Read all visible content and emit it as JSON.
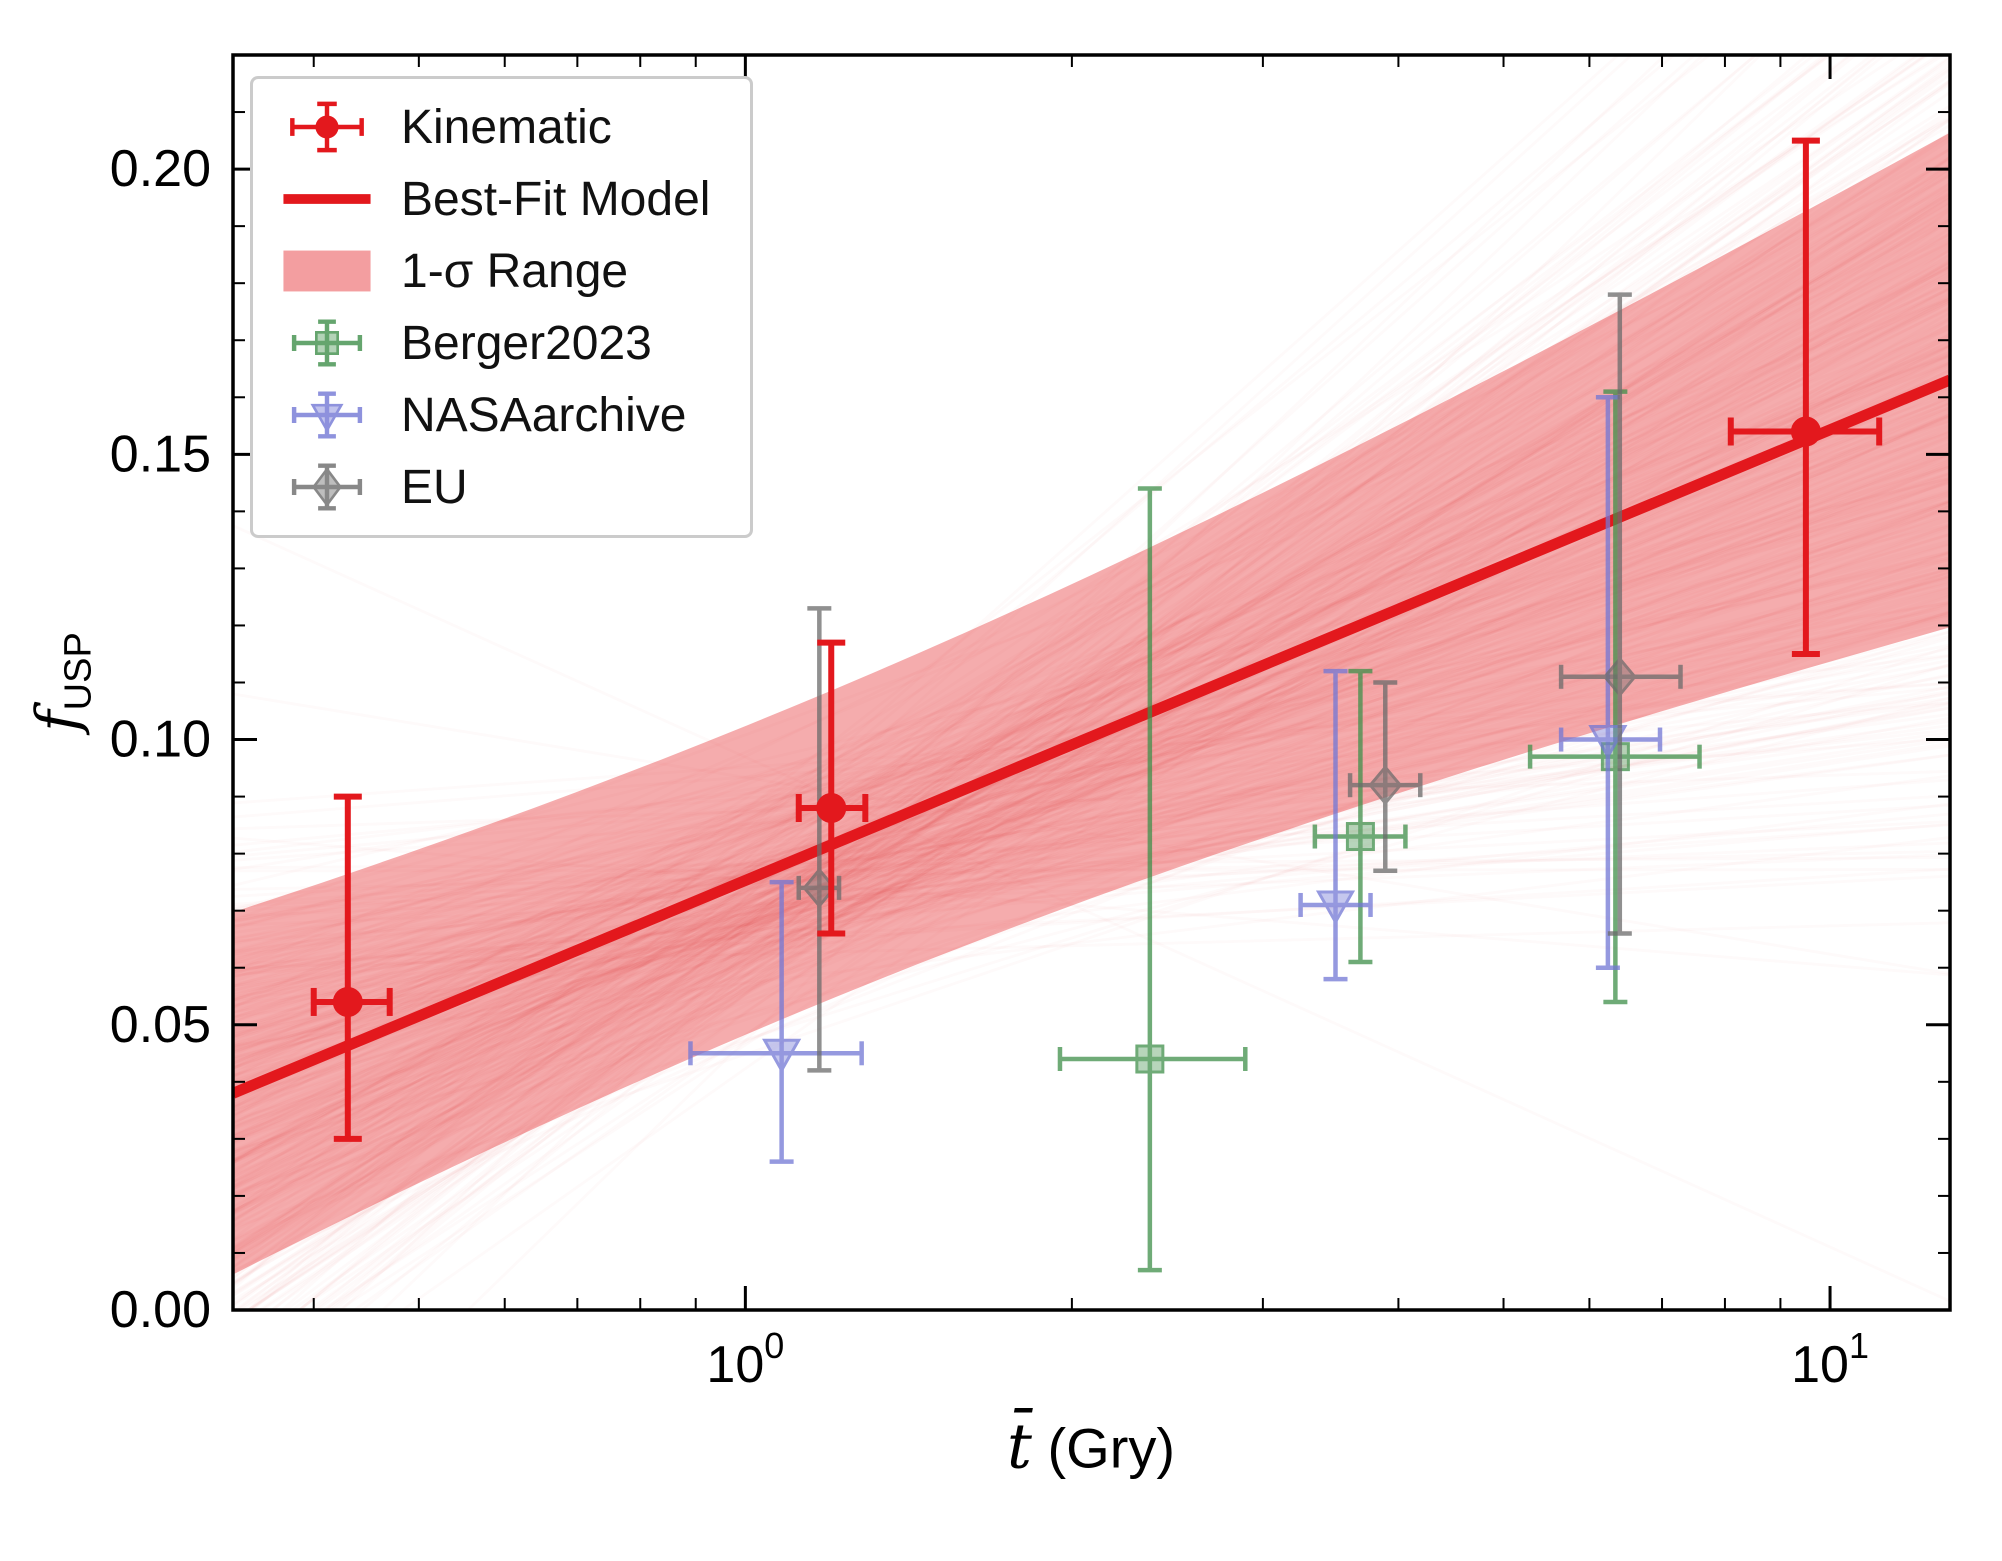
{
  "figure": {
    "background": "#ffffff"
  },
  "axes": {
    "xlabel": {
      "symbol": "t̄",
      "unit": " (Gry)"
    },
    "ylabel": {
      "symbol": "f",
      "sub": "USP"
    }
  },
  "chart_data": {
    "type": "scatter",
    "title": "",
    "x_axis": {
      "scale": "log",
      "min": 0.337,
      "max": 12.9,
      "major_ticks": [
        {
          "value": 1,
          "base": "10",
          "exp": "0"
        },
        {
          "value": 10,
          "base": "10",
          "exp": "1"
        }
      ]
    },
    "y_axis": {
      "scale": "linear",
      "min": 0,
      "max": 0.22,
      "major_ticks": [
        {
          "value": 0.0,
          "label": "0.00"
        },
        {
          "value": 0.05,
          "label": "0.05"
        },
        {
          "value": 0.1,
          "label": "0.10"
        },
        {
          "value": 0.15,
          "label": "0.15"
        },
        {
          "value": 0.2,
          "label": "0.20"
        }
      ],
      "minor_step": 0.01
    },
    "best_fit": {
      "y_at_x1": 0.0753,
      "slope_per_decade": 0.079
    },
    "sigma_band": {
      "w0": 0.027,
      "k": 0.032,
      "lc": 0.05,
      "alpha": 0.36
    },
    "posterior_lines": {
      "count": 380,
      "seed": 7,
      "pivot_log": 0.08,
      "pivot_mean": 0.078,
      "pivot_sd": 0.01,
      "slope_mean": 0.079,
      "slope_sd": 0.042,
      "alpha": 0.025
    },
    "series": [
      {
        "name": "Berger2023",
        "marker": "square",
        "color": "#3f8f4a",
        "opacity": 0.75,
        "points": [
          {
            "x": 2.36,
            "xlo": 1.95,
            "xhi": 2.89,
            "y": 0.044,
            "ylo": 0.007,
            "yhi": 0.144
          },
          {
            "x": 3.69,
            "xlo": 3.35,
            "xhi": 4.06,
            "y": 0.083,
            "ylo": 0.061,
            "yhi": 0.112
          },
          {
            "x": 6.34,
            "xlo": 5.29,
            "xhi": 7.58,
            "y": 0.097,
            "ylo": 0.054,
            "yhi": 0.161
          }
        ]
      },
      {
        "name": "NASAarchive",
        "marker": "triangle-down",
        "color": "#7277d5",
        "opacity": 0.75,
        "points": [
          {
            "x": 1.08,
            "xlo": 0.89,
            "xhi": 1.28,
            "y": 0.045,
            "ylo": 0.026,
            "yhi": 0.075
          },
          {
            "x": 3.5,
            "xlo": 3.25,
            "xhi": 3.77,
            "y": 0.071,
            "ylo": 0.058,
            "yhi": 0.112
          },
          {
            "x": 6.24,
            "xlo": 5.65,
            "xhi": 6.97,
            "y": 0.1,
            "ylo": 0.06,
            "yhi": 0.16
          }
        ]
      },
      {
        "name": "EU",
        "marker": "diamond",
        "color": "#6b6b6b",
        "opacity": 0.75,
        "points": [
          {
            "x": 1.17,
            "xlo": 1.12,
            "xhi": 1.22,
            "y": 0.074,
            "ylo": 0.042,
            "yhi": 0.123
          },
          {
            "x": 3.89,
            "xlo": 3.61,
            "xhi": 4.19,
            "y": 0.092,
            "ylo": 0.077,
            "yhi": 0.11
          },
          {
            "x": 6.4,
            "xlo": 5.65,
            "xhi": 7.28,
            "y": 0.111,
            "ylo": 0.066,
            "yhi": 0.178
          }
        ]
      },
      {
        "name": "Kinematic",
        "marker": "circle",
        "color": "#e3181d",
        "opacity": 1,
        "points": [
          {
            "x": 0.43,
            "xlo": 0.4,
            "xhi": 0.47,
            "y": 0.054,
            "ylo": 0.03,
            "yhi": 0.09
          },
          {
            "x": 1.2,
            "xlo": 1.12,
            "xhi": 1.29,
            "y": 0.088,
            "ylo": 0.066,
            "yhi": 0.117
          },
          {
            "x": 9.5,
            "xlo": 8.1,
            "xhi": 11.1,
            "y": 0.154,
            "ylo": 0.115,
            "yhi": 0.205
          }
        ]
      }
    ],
    "legend": [
      {
        "label": "Kinematic"
      },
      {
        "label": "Best-Fit Model"
      },
      {
        "label": "1-σ Range"
      },
      {
        "label": "Berger2023"
      },
      {
        "label": "NASAarchive"
      },
      {
        "label": "EU"
      }
    ]
  }
}
